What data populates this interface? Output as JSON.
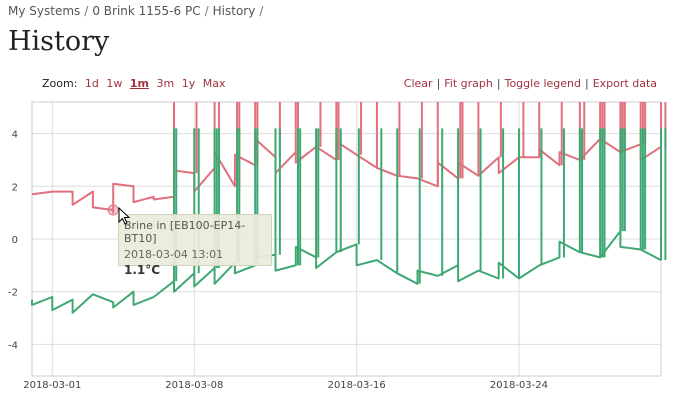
{
  "breadcrumb": [
    {
      "label": "My Systems"
    },
    {
      "label": "0 Brink 1155-6 PC"
    },
    {
      "label": "History"
    }
  ],
  "breadcrumb_separator": "/",
  "page_title": "History",
  "zoom": {
    "label": "Zoom:",
    "options": [
      "1d",
      "1w",
      "1m",
      "3m",
      "1y",
      "Max"
    ],
    "active": "1m"
  },
  "actions": {
    "clear": "Clear",
    "fit_graph": "Fit graph",
    "toggle_legend": "Toggle legend",
    "export_data": "Export data",
    "separator": "|"
  },
  "tooltip": {
    "series": "Brine in [EB100-EP14-BT10]",
    "time": "2018-03-04 13:01",
    "value": "1.1°C"
  },
  "colors": {
    "accent": "#a1313f",
    "series_red": "#e0707d",
    "series_green": "#3fa872",
    "grid": "#dddddd"
  },
  "chart_data": {
    "type": "line",
    "x_tick_labels": [
      "2018-03-01",
      "2018-03-08",
      "2018-03-16",
      "2018-03-24"
    ],
    "x_ticks": [
      "2018-03-01",
      "2018-03-08",
      "2018-03-16",
      "2018-03-24"
    ],
    "x_range": [
      "2018-02-28",
      "2018-03-31"
    ],
    "y_tick_labels": [
      "4",
      "2",
      "0",
      "-2",
      "-4"
    ],
    "y_ticks": [
      4,
      2,
      0,
      -2,
      -4
    ],
    "ylim": [
      -5.2,
      5.2
    ],
    "grid": true,
    "series": [
      {
        "key": "red",
        "color": "#e0707d",
        "x": [
          "2018-02-28",
          "2018-03-01",
          "2018-03-02",
          "2018-03-02",
          "2018-03-03",
          "2018-03-03",
          "2018-03-04",
          "2018-03-04",
          "2018-03-04",
          "2018-03-05",
          "2018-03-05",
          "2018-03-06",
          "2018-03-06",
          "2018-03-07",
          "2018-03-07",
          "2018-03-08",
          "2018-03-08",
          "2018-03-09",
          "2018-03-09",
          "2018-03-09",
          "2018-03-10",
          "2018-03-10",
          "2018-03-11",
          "2018-03-11",
          "2018-03-12",
          "2018-03-12",
          "2018-03-13",
          "2018-03-13",
          "2018-03-14",
          "2018-03-15",
          "2018-03-15",
          "2018-03-16",
          "2018-03-17",
          "2018-03-18",
          "2018-03-19",
          "2018-03-20",
          "2018-03-20",
          "2018-03-21",
          "2018-03-21",
          "2018-03-22",
          "2018-03-23",
          "2018-03-23",
          "2018-03-24",
          "2018-03-25",
          "2018-03-25",
          "2018-03-26",
          "2018-03-26",
          "2018-03-27",
          "2018-03-28",
          "2018-03-29",
          "2018-03-30",
          "2018-03-30",
          "2018-03-31"
        ],
        "y": [
          1.7,
          1.8,
          1.8,
          1.3,
          1.8,
          1.2,
          1.1,
          1.0,
          2.1,
          2.0,
          1.4,
          1.6,
          1.5,
          1.6,
          2.6,
          2.5,
          1.8,
          2.7,
          2.4,
          3.3,
          2.0,
          3.2,
          2.8,
          3.8,
          3.1,
          2.5,
          3.3,
          2.9,
          3.5,
          3.0,
          3.7,
          3.2,
          2.7,
          2.4,
          2.3,
          2.0,
          2.9,
          2.3,
          2.9,
          2.4,
          3.1,
          2.5,
          3.1,
          3.1,
          3.4,
          2.8,
          3.3,
          3.0,
          3.8,
          3.3,
          3.6,
          3.0,
          3.5
        ]
      },
      {
        "key": "green",
        "color": "#3fa872",
        "x": [
          "2018-02-28",
          "2018-02-28",
          "2018-03-01",
          "2018-03-01",
          "2018-03-02",
          "2018-03-02",
          "2018-03-03",
          "2018-03-04",
          "2018-03-04",
          "2018-03-05",
          "2018-03-05",
          "2018-03-06",
          "2018-03-07",
          "2018-03-07",
          "2018-03-08",
          "2018-03-08",
          "2018-03-09",
          "2018-03-09",
          "2018-03-10",
          "2018-03-10",
          "2018-03-11",
          "2018-03-11",
          "2018-03-12",
          "2018-03-12",
          "2018-03-13",
          "2018-03-13",
          "2018-03-14",
          "2018-03-14",
          "2018-03-15",
          "2018-03-16",
          "2018-03-16",
          "2018-03-17",
          "2018-03-18",
          "2018-03-19",
          "2018-03-19",
          "2018-03-20",
          "2018-03-21",
          "2018-03-21",
          "2018-03-22",
          "2018-03-23",
          "2018-03-23",
          "2018-03-24",
          "2018-03-25",
          "2018-03-26",
          "2018-03-26",
          "2018-03-27",
          "2018-03-28",
          "2018-03-29",
          "2018-03-29",
          "2018-03-30",
          "2018-03-31"
        ],
        "y": [
          -2.3,
          -2.5,
          -2.2,
          -2.7,
          -2.3,
          -2.8,
          -2.1,
          -2.4,
          -2.6,
          -2.0,
          -2.5,
          -2.2,
          -1.6,
          -2.0,
          -1.3,
          -1.8,
          -1.1,
          -1.7,
          -0.9,
          -1.3,
          -1.0,
          -0.7,
          -0.6,
          -1.2,
          -1.0,
          -0.3,
          -0.7,
          -1.1,
          -0.5,
          -0.2,
          -1.0,
          -0.8,
          -1.3,
          -1.7,
          -1.2,
          -1.4,
          -1.0,
          -1.6,
          -1.2,
          -1.5,
          -0.9,
          -1.5,
          -1.0,
          -0.7,
          -0.1,
          -0.5,
          -0.7,
          0.3,
          -0.3,
          -0.4,
          -0.8
        ]
      }
    ],
    "spikes": {
      "red": [
        "2018-03-07",
        "2018-03-08",
        "2018-03-09",
        "2018-03-09",
        "2018-03-10",
        "2018-03-10",
        "2018-03-11",
        "2018-03-11",
        "2018-03-12",
        "2018-03-13",
        "2018-03-13",
        "2018-03-14",
        "2018-03-15",
        "2018-03-15",
        "2018-03-16",
        "2018-03-17",
        "2018-03-18",
        "2018-03-19",
        "2018-03-20",
        "2018-03-21",
        "2018-03-21",
        "2018-03-22",
        "2018-03-23",
        "2018-03-24",
        "2018-03-25",
        "2018-03-26",
        "2018-03-27",
        "2018-03-27",
        "2018-03-28",
        "2018-03-28",
        "2018-03-28",
        "2018-03-29",
        "2018-03-29",
        "2018-03-29",
        "2018-03-29",
        "2018-03-30",
        "2018-03-30",
        "2018-03-30",
        "2018-03-31",
        "2018-03-31"
      ],
      "green": [
        "2018-03-07",
        "2018-03-07",
        "2018-03-08",
        "2018-03-08",
        "2018-03-09",
        "2018-03-09",
        "2018-03-09",
        "2018-03-10",
        "2018-03-10",
        "2018-03-11",
        "2018-03-11",
        "2018-03-12",
        "2018-03-12",
        "2018-03-13",
        "2018-03-13",
        "2018-03-14",
        "2018-03-14",
        "2018-03-15",
        "2018-03-15",
        "2018-03-16",
        "2018-03-17",
        "2018-03-18",
        "2018-03-19",
        "2018-03-20",
        "2018-03-21",
        "2018-03-22",
        "2018-03-23",
        "2018-03-24",
        "2018-03-25",
        "2018-03-26",
        "2018-03-27",
        "2018-03-27",
        "2018-03-28",
        "2018-03-28",
        "2018-03-28",
        "2018-03-29",
        "2018-03-29",
        "2018-03-29",
        "2018-03-30",
        "2018-03-30",
        "2018-03-30",
        "2018-03-31",
        "2018-03-31"
      ],
      "red_top": 5.2,
      "green_top": 4.2
    },
    "hover_point": {
      "x": "2018-03-04",
      "y": 1.1
    }
  }
}
